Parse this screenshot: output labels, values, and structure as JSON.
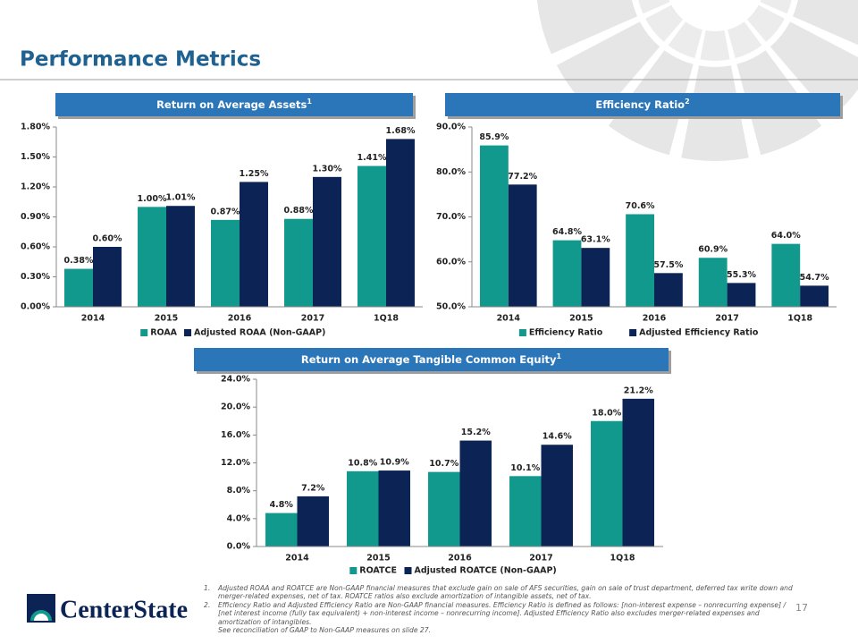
{
  "header": {
    "title": "Performance Metrics"
  },
  "chart_data": [
    {
      "type": "bar",
      "title": "Return on Average Assets",
      "title_sup": "1",
      "categories": [
        "2014",
        "2015",
        "2016",
        "2017",
        "1Q18"
      ],
      "series": [
        {
          "name": "ROAA",
          "color": "#12998e",
          "values": [
            0.38,
            1.0,
            0.87,
            0.88,
            1.41
          ],
          "value_labels": [
            "0.38%",
            "1.00%",
            "0.87%",
            "0.88%",
            "1.41%"
          ]
        },
        {
          "name": "Adjusted ROAA (Non-GAAP)",
          "color": "#0c2455",
          "values": [
            0.6,
            1.01,
            1.25,
            1.3,
            1.68
          ],
          "value_labels": [
            "0.60%",
            "1.01%",
            "1.25%",
            "1.30%",
            "1.68%"
          ]
        }
      ],
      "ylim": [
        0,
        1.8
      ],
      "yticks": [
        {
          "value": 0,
          "label": "0.00%"
        },
        {
          "value": 0.3,
          "label": "0.30%"
        },
        {
          "value": 0.6,
          "label": "0.60%"
        },
        {
          "value": 0.9,
          "label": "0.90%"
        },
        {
          "value": 1.2,
          "label": "1.20%"
        },
        {
          "value": 1.5,
          "label": "1.50%"
        },
        {
          "value": 1.8,
          "label": "1.80%"
        }
      ],
      "legend": "bottom"
    },
    {
      "type": "bar",
      "title": "Efficiency Ratio",
      "title_sup": "2",
      "categories": [
        "2014",
        "2015",
        "2016",
        "2017",
        "1Q18"
      ],
      "series": [
        {
          "name": "Efficiency Ratio",
          "color": "#12998e",
          "values": [
            85.9,
            64.8,
            70.6,
            60.9,
            64.0
          ],
          "value_labels": [
            "85.9%",
            "64.8%",
            "70.6%",
            "60.9%",
            "64.0%"
          ]
        },
        {
          "name": "Adjusted Efficiency Ratio",
          "color": "#0c2455",
          "values": [
            77.2,
            63.1,
            57.5,
            55.3,
            54.7
          ],
          "value_labels": [
            "77.2%",
            "63.1%",
            "57.5%",
            "55.3%",
            "54.7%"
          ]
        }
      ],
      "ylim": [
        50,
        90
      ],
      "yticks": [
        {
          "value": 50,
          "label": "50.0%"
        },
        {
          "value": 60,
          "label": "60.0%"
        },
        {
          "value": 70,
          "label": "70.0%"
        },
        {
          "value": 80,
          "label": "80.0%"
        },
        {
          "value": 90,
          "label": "90.0%"
        }
      ],
      "legend": "bottom"
    },
    {
      "type": "bar",
      "title": "Return on Average Tangible Common Equity",
      "title_sup": "1",
      "categories": [
        "2014",
        "2015",
        "2016",
        "2017",
        "1Q18"
      ],
      "series": [
        {
          "name": "ROATCE",
          "color": "#12998e",
          "values": [
            4.8,
            10.8,
            10.7,
            10.1,
            18.0
          ],
          "value_labels": [
            "4.8%",
            "10.8%",
            "10.7%",
            "10.1%",
            "18.0%"
          ]
        },
        {
          "name": "Adjusted ROATCE (Non-GAAP)",
          "color": "#0c2455",
          "values": [
            7.2,
            10.9,
            15.2,
            14.6,
            21.2
          ],
          "value_labels": [
            "7.2%",
            "10.9%",
            "15.2%",
            "14.6%",
            "21.2%"
          ]
        }
      ],
      "ylim": [
        0,
        24
      ],
      "yticks": [
        {
          "value": 0,
          "label": "0.0%"
        },
        {
          "value": 4,
          "label": "4.0%"
        },
        {
          "value": 8,
          "label": "8.0%"
        },
        {
          "value": 12,
          "label": "12.0%"
        },
        {
          "value": 16,
          "label": "16.0%"
        },
        {
          "value": 20,
          "label": "20.0%"
        },
        {
          "value": 24,
          "label": "24.0%"
        }
      ],
      "legend": "bottom"
    }
  ],
  "footnotes": [
    {
      "marker": "1.",
      "text": "Adjusted ROAA and ROATCE are Non-GAAP financial measures that exclude gain on sale of AFS securities, gain on sale of trust department, deferred tax write down and merger-related expenses, net of tax.  ROATCE ratios also exclude amortization of intangible assets, net of tax."
    },
    {
      "marker": "2.",
      "text": "Efficiency Ratio and Adjusted Efficiency Ratio are Non-GAAP financial measures.  Efficiency Ratio is defined as follows:  [non-interest expense – nonrecurring expense] / [net interest income (fully tax equivalent) + non-interest income – nonrecurring income].  Adjusted Efficiency Ratio also excludes merger-related expenses and amortization of intangibles."
    },
    {
      "text": "See reconciliation of GAAP to Non-GAAP measures on slide 27."
    }
  ],
  "logo": {
    "text": "CenterState"
  },
  "page_number": "17"
}
